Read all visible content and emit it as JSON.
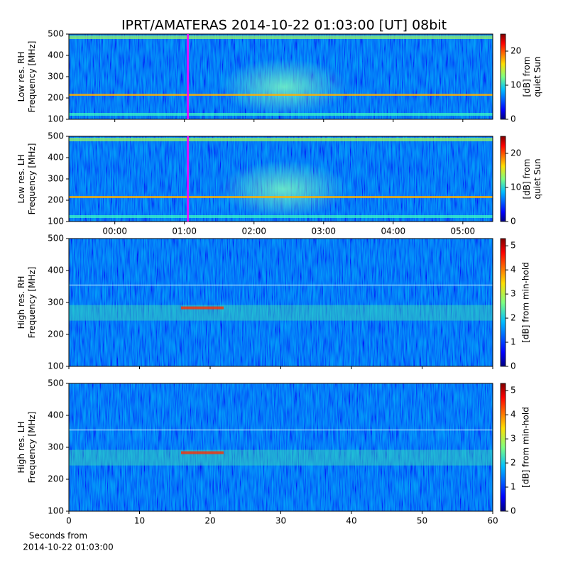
{
  "title": "IPRT/AMATERAS 2014-10-22 01:03:00 [UT]   08bit",
  "chart_data": [
    {
      "type": "heatmap",
      "colormap": "jet",
      "ylabel": [
        "Low res. RH",
        "Frequency [MHz]"
      ],
      "xlim": [
        -0.66,
        5.43
      ],
      "xticks": [
        0,
        1,
        2,
        3,
        4,
        5
      ],
      "show_xticklabels": false,
      "ylim": [
        100,
        500
      ],
      "yticks": [
        100,
        200,
        300,
        400,
        500
      ],
      "colorbar": {
        "label": [
          "[dB] from",
          "quiet Sun"
        ],
        "lim": [
          0,
          25
        ],
        "ticks": [
          0,
          10,
          20
        ]
      },
      "marker": {
        "x": 1.05,
        "color": "#ff00ff"
      }
    },
    {
      "type": "heatmap",
      "colormap": "jet",
      "ylabel": [
        "Low res. LH",
        "Frequency [MHz]"
      ],
      "xlim": [
        -0.66,
        5.43
      ],
      "xticks": [
        {
          "value": 0,
          "label": "00:00"
        },
        {
          "value": 1,
          "label": "01:00"
        },
        {
          "value": 2,
          "label": "02:00"
        },
        {
          "value": 3,
          "label": "03:00"
        },
        {
          "value": 4,
          "label": "04:00"
        },
        {
          "value": 5,
          "label": "05:00"
        }
      ],
      "show_xticklabels": true,
      "ylim": [
        100,
        500
      ],
      "yticks": [
        100,
        200,
        300,
        400,
        500
      ],
      "colorbar": {
        "label": [
          "[dB] from",
          "quiet Sun"
        ],
        "lim": [
          0,
          25
        ],
        "ticks": [
          0,
          10,
          20
        ]
      },
      "marker": {
        "x": 1.05,
        "color": "#ff00ff"
      }
    },
    {
      "type": "heatmap",
      "colormap": "jet",
      "ylabel": [
        "High res. RH",
        "Frequency [MHz]"
      ],
      "xlim": [
        0,
        60
      ],
      "xticks": [
        0,
        10,
        20,
        30,
        40,
        50,
        60
      ],
      "show_xticklabels": false,
      "ylim": [
        100,
        500
      ],
      "yticks": [
        100,
        200,
        300,
        400,
        500
      ],
      "colorbar": {
        "label": [
          "[dB] from min-hold"
        ],
        "lim": [
          0,
          5.3
        ],
        "ticks": [
          0,
          1,
          2,
          3,
          4,
          5
        ]
      }
    },
    {
      "type": "heatmap",
      "colormap": "jet",
      "ylabel": [
        "High res. LH",
        "Frequency [MHz]"
      ],
      "xlabel": [
        "Seconds from",
        "2014-10-22 01:03:00"
      ],
      "xlim": [
        0,
        60
      ],
      "xticks": [
        0,
        10,
        20,
        30,
        40,
        50,
        60
      ],
      "show_xticklabels": true,
      "ylim": [
        100,
        500
      ],
      "yticks": [
        100,
        200,
        300,
        400,
        500
      ],
      "colorbar": {
        "label": [
          "[dB] from min-hold"
        ],
        "lim": [
          0,
          5.3
        ],
        "ticks": [
          0,
          1,
          2,
          3,
          4,
          5
        ]
      }
    }
  ]
}
